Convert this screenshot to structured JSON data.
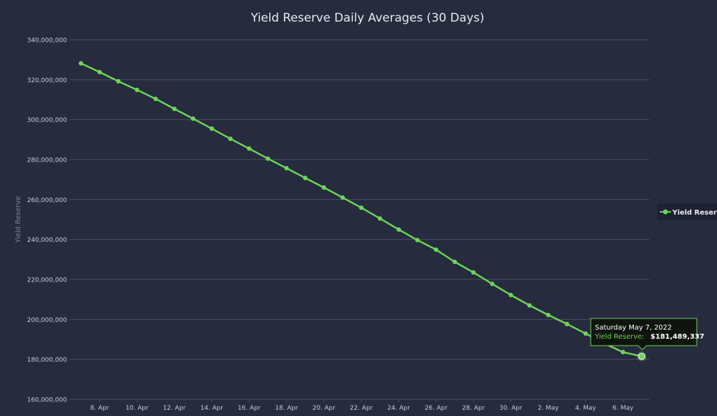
{
  "chart_data": {
    "type": "line",
    "title": "Yield Reserve Daily Averages (30 Days)",
    "xlabel": "",
    "ylabel": "Yield Reserve",
    "x": [
      "7 Apr",
      "8 Apr",
      "9 Apr",
      "10 Apr",
      "11 Apr",
      "12 Apr",
      "13 Apr",
      "14 Apr",
      "15 Apr",
      "16 Apr",
      "17 Apr",
      "18 Apr",
      "19 Apr",
      "20 Apr",
      "21 Apr",
      "22 Apr",
      "23 Apr",
      "24 Apr",
      "25 Apr",
      "26 Apr",
      "27 Apr",
      "28 Apr",
      "29 Apr",
      "30 Apr",
      "1 May",
      "2 May",
      "3 May",
      "4 May",
      "5 May",
      "6 May",
      "7 May"
    ],
    "x_tick_labels": [
      "8. Apr",
      "10. Apr",
      "12. Apr",
      "14. Apr",
      "16. Apr",
      "18. Apr",
      "20. Apr",
      "22. Apr",
      "24. Apr",
      "26. Apr",
      "28. Apr",
      "30. Apr",
      "2. May",
      "4. May",
      "6. May"
    ],
    "y_tick_labels": [
      "160,000,000",
      "180,000,000",
      "200,000,000",
      "220,000,000",
      "240,000,000",
      "260,000,000",
      "280,000,000",
      "300,000,000",
      "320,000,000",
      "340,000,000"
    ],
    "ylim": [
      160000000,
      340000000
    ],
    "grid": true,
    "legend_position": "right",
    "series": [
      {
        "name": "Yield Reserve",
        "color": "#6dd45a",
        "values": [
          328200000,
          323800000,
          319200000,
          314900000,
          310400000,
          305400000,
          300500000,
          295500000,
          290400000,
          285500000,
          280500000,
          275700000,
          270800000,
          266000000,
          261000000,
          255900000,
          250500000,
          245000000,
          239700000,
          234900000,
          228800000,
          223500000,
          217800000,
          212200000,
          207000000,
          202200000,
          197700000,
          192900000,
          187900000,
          183600000,
          181489337
        ]
      }
    ],
    "tooltip": {
      "date": "Saturday May 7, 2022",
      "series_label": "Yield Reserve:",
      "value": "$181,489,337"
    }
  }
}
